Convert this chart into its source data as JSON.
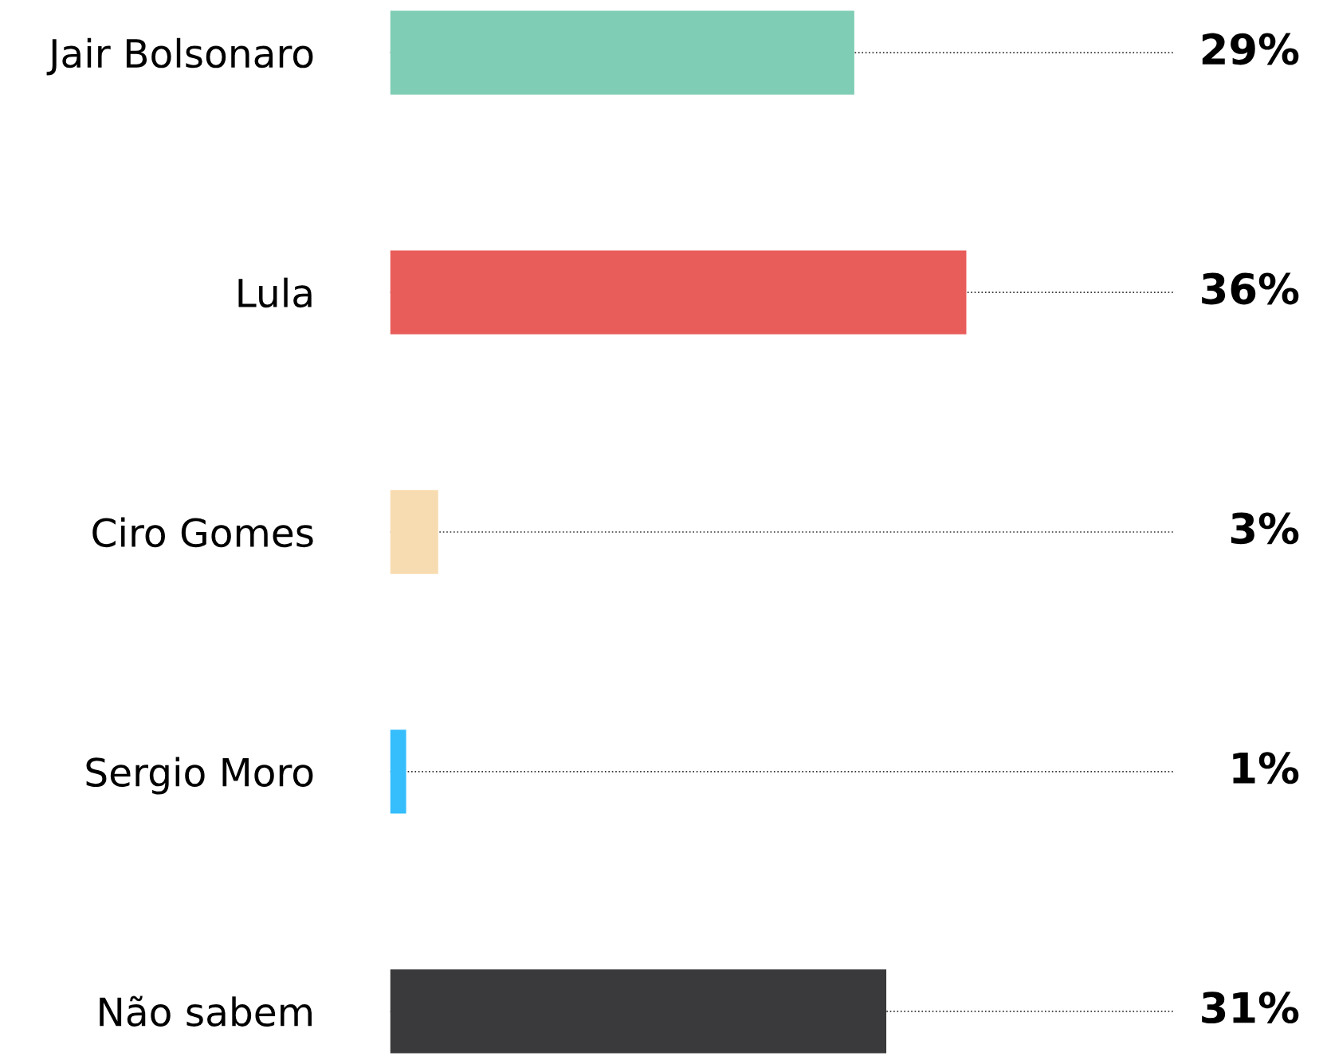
{
  "chart_data": {
    "type": "bar",
    "orientation": "horizontal",
    "categories": [
      "Jair Bolsonaro",
      "Lula",
      "Ciro Gomes",
      "Sergio Moro",
      "Não sabem"
    ],
    "values": [
      29,
      36,
      3,
      1,
      31
    ],
    "colors": [
      "#7fcdb5",
      "#e85d5a",
      "#f8dcb1",
      "#35bdfc",
      "#3a3a3c"
    ],
    "value_labels": [
      "29%",
      "36%",
      "3%",
      "1%",
      "31%"
    ],
    "grid": "y",
    "line_style": "dotted",
    "tick_labels": "y",
    "legend": false
  }
}
